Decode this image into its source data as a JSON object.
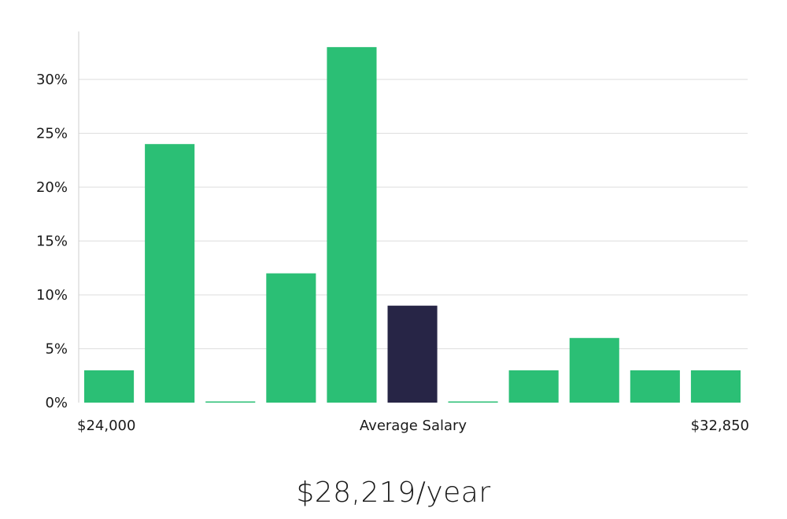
{
  "chart_data": {
    "type": "bar",
    "categories": [
      "1",
      "2",
      "3",
      "4",
      "5",
      "6",
      "7",
      "8",
      "9",
      "10",
      "11"
    ],
    "values": [
      3,
      24,
      0,
      12,
      33,
      9,
      0,
      3,
      6,
      3,
      3
    ],
    "highlight_index": 5,
    "ylim": [
      0,
      35
    ],
    "y_ticks": [
      0,
      5,
      10,
      15,
      20,
      25,
      30
    ],
    "y_tick_format": "{v}%",
    "x_label_left": "$24,000",
    "x_label_center": "Average Salary",
    "x_label_right": "$32,850",
    "grid": true,
    "colors": {
      "bar": "#2bbf75",
      "highlight": "#272546",
      "grid": "#dedede",
      "axis": "#cfcfcf"
    }
  },
  "salary_text": "$28,219/year"
}
